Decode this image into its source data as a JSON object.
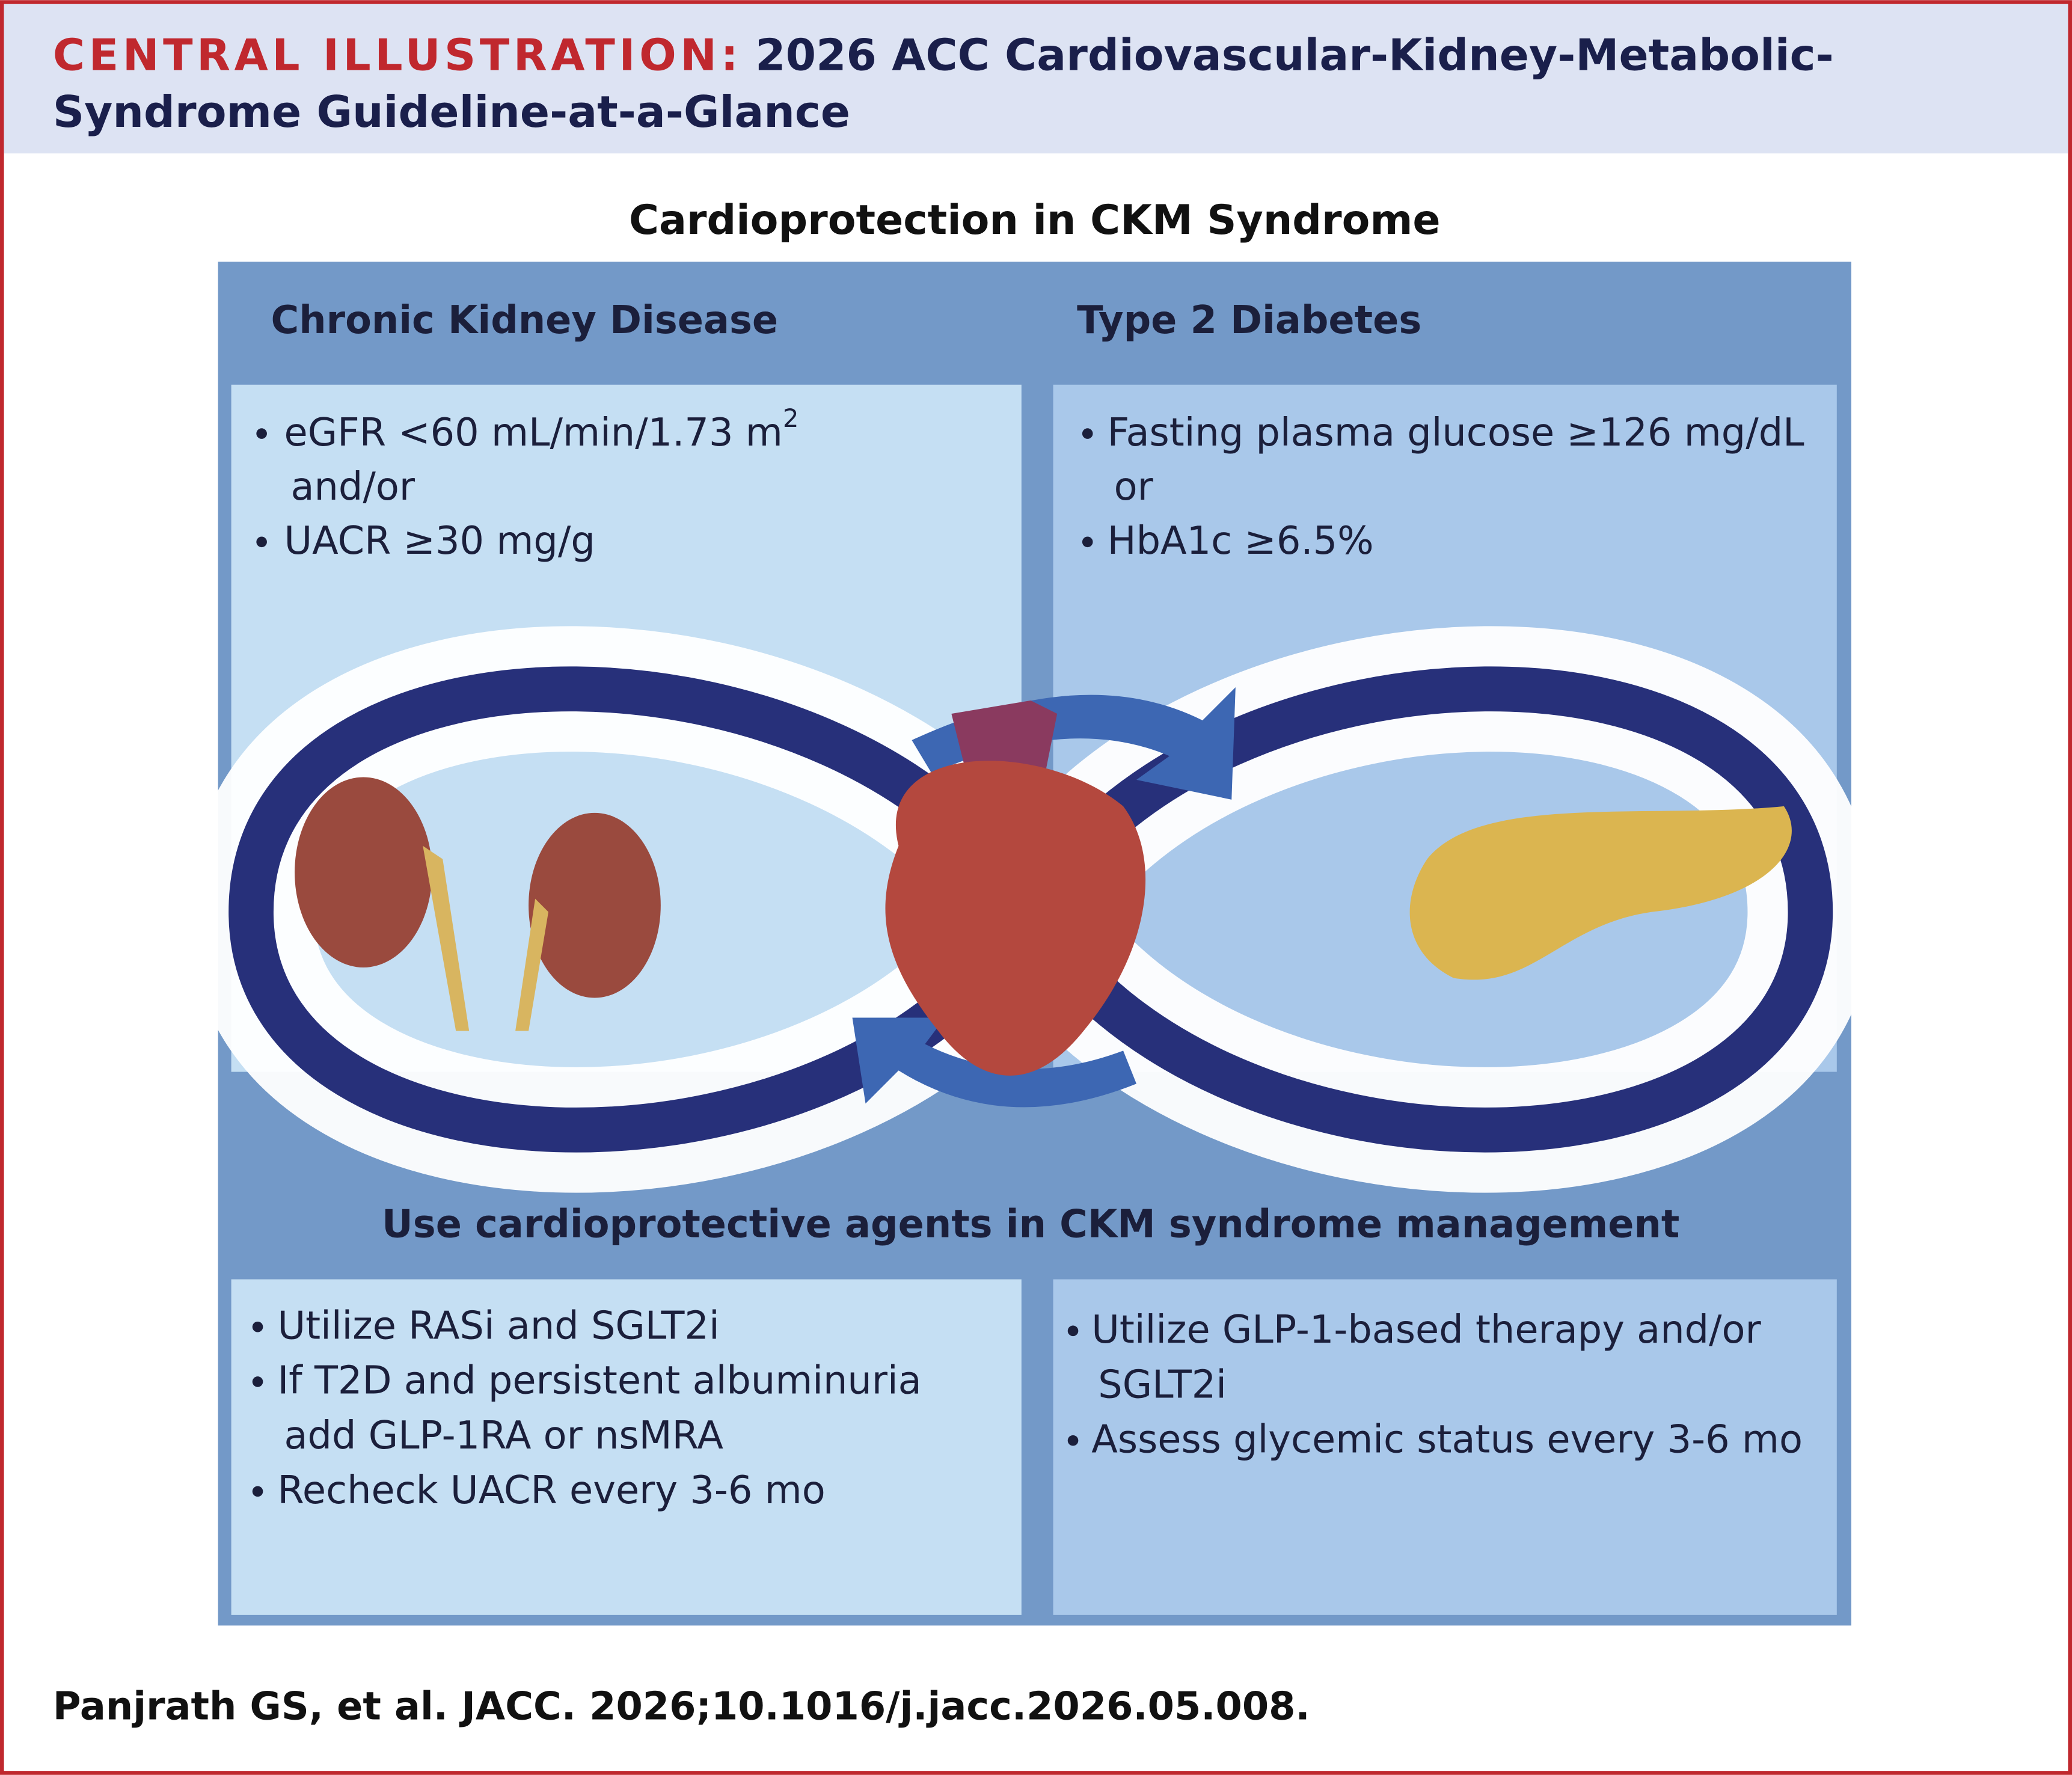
{
  "header": {
    "label": "CENTRAL ILLUSTRATION:",
    "title_lines": [
      "2026 ACC Cardiovascular-Kidney-Metabolic-",
      "Syndrome Guideline-at-a-Glance"
    ]
  },
  "subtitle": "Cardioprotection in CKM Syndrome",
  "panels": {
    "kidney": {
      "heading": "Chronic Kidney Disease",
      "criteria": [
        {
          "lines": [
            "eGFR <60 mL/min/1.73 m",
            "and/or"
          ],
          "superscript": "2"
        },
        {
          "lines": [
            "UACR ≥30 mg/g"
          ]
        }
      ],
      "management": [
        {
          "lines": [
            "Utilize RASi and SGLT2i"
          ]
        },
        {
          "lines": [
            "If T2D and persistent albuminuria",
            "add GLP-1RA or nsMRA"
          ]
        },
        {
          "lines": [
            "Recheck UACR every 3-6 mo"
          ]
        }
      ]
    },
    "diabetes": {
      "heading": "Type 2 Diabetes",
      "criteria": [
        {
          "lines": [
            "Fasting plasma glucose ≥126 mg/dL",
            "or"
          ]
        },
        {
          "lines": [
            "HbA1c ≥6.5%"
          ]
        }
      ],
      "management": [
        {
          "lines": [
            "Utilize GLP-1-based therapy and/or",
            "SGLT2i"
          ]
        },
        {
          "lines": [
            "Assess glycemic status every 3-6 mo"
          ]
        }
      ]
    }
  },
  "management_heading": "Use cardioprotective agents in CKM syndrome management",
  "citation": "Panjrath GS, et al. JACC. 2026;10.1016/j.jacc.2026.05.008."
}
